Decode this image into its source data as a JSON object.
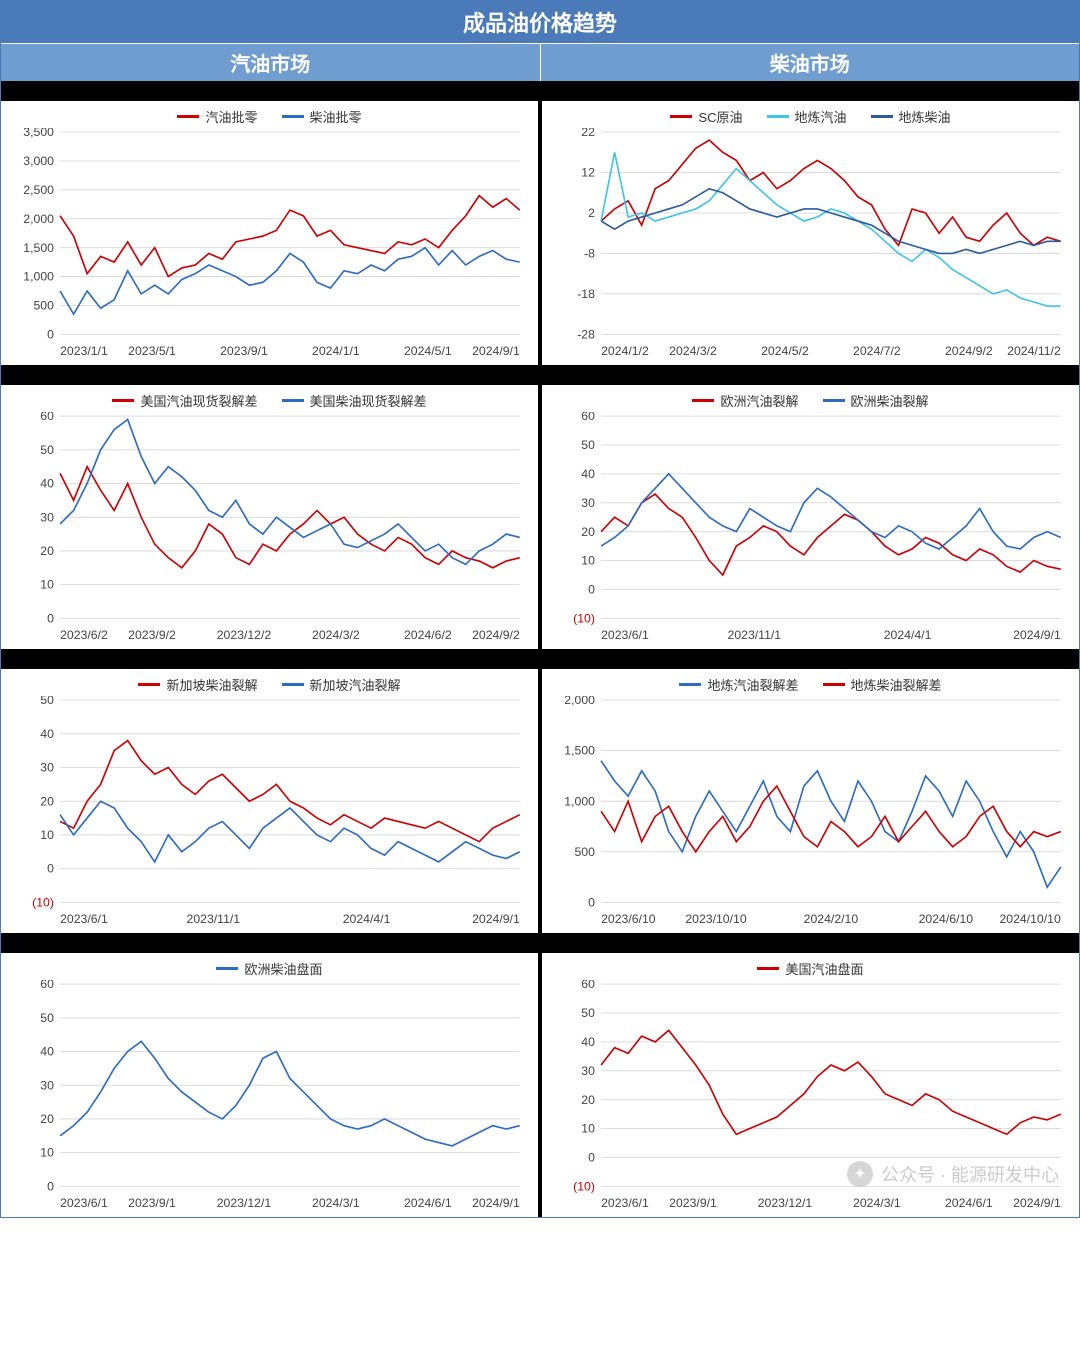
{
  "colors": {
    "header_bg": "#4a7ab8",
    "subheader_bg": "#6f9dd0",
    "grid": "#dcdcdc",
    "red": "#cc0000",
    "blue": "#2a6cc4",
    "cyan": "#3ec5e8",
    "darkblue": "#2a5aa0",
    "text": "#444444",
    "bg": "#ffffff"
  },
  "typography": {
    "title_fontsize": 22,
    "subtitle_fontsize": 20,
    "legend_fontsize": 13,
    "axis_fontsize": 12
  },
  "main_title": "成品油价格趋势",
  "subtitles": {
    "left": "汽油市场",
    "right": "柴油市场"
  },
  "watermark": "公众号 · 能源研发中心",
  "charts": [
    {
      "id": "c1",
      "type": "line",
      "y": {
        "min": 0,
        "max": 3500,
        "step": 500
      },
      "x_labels": [
        "2023/1/1",
        "2023/5/1",
        "2023/9/1",
        "2024/1/1",
        "2024/5/1",
        "2024/9/1"
      ],
      "series": [
        {
          "name": "汽油批零",
          "color": "red",
          "data": [
            2050,
            1700,
            1050,
            1350,
            1250,
            1600,
            1200,
            1500,
            1000,
            1150,
            1200,
            1400,
            1300,
            1600,
            1650,
            1700,
            1800,
            2150,
            2050,
            1700,
            1800,
            1550,
            1500,
            1450,
            1400,
            1600,
            1550,
            1650,
            1500,
            1800,
            2050,
            2400,
            2200,
            2350,
            2150
          ]
        },
        {
          "name": "柴油批零",
          "color": "blue",
          "data": [
            750,
            350,
            750,
            450,
            600,
            1100,
            700,
            850,
            700,
            950,
            1050,
            1200,
            1100,
            1000,
            850,
            900,
            1100,
            1400,
            1250,
            900,
            800,
            1100,
            1050,
            1200,
            1100,
            1300,
            1350,
            1500,
            1200,
            1450,
            1200,
            1350,
            1450,
            1300,
            1250
          ]
        }
      ]
    },
    {
      "id": "c2",
      "type": "line",
      "y": {
        "min": -28,
        "max": 22,
        "step": 10
      },
      "x_labels": [
        "2024/1/2",
        "2024/3/2",
        "2024/5/2",
        "2024/7/2",
        "2024/9/2",
        "2024/11/2"
      ],
      "series": [
        {
          "name": "SC原油",
          "color": "red",
          "data": [
            0,
            3,
            5,
            -1,
            8,
            10,
            14,
            18,
            20,
            17,
            15,
            10,
            12,
            8,
            10,
            13,
            15,
            13,
            10,
            6,
            4,
            -2,
            -6,
            3,
            2,
            -3,
            1,
            -4,
            -5,
            -1,
            2,
            -3,
            -6,
            -4,
            -5
          ]
        },
        {
          "name": "地炼汽油",
          "color": "cyan",
          "data": [
            0,
            17,
            1,
            2,
            0,
            1,
            2,
            3,
            5,
            9,
            13,
            10,
            7,
            4,
            2,
            0,
            1,
            3,
            2,
            0,
            -2,
            -5,
            -8,
            -10,
            -7,
            -9,
            -12,
            -14,
            -16,
            -18,
            -17,
            -19,
            -20,
            -21,
            -21
          ]
        },
        {
          "name": "地炼柴油",
          "color": "darkblue",
          "data": [
            0,
            -2,
            0,
            1,
            2,
            3,
            4,
            6,
            8,
            7,
            5,
            3,
            2,
            1,
            2,
            3,
            3,
            2,
            1,
            0,
            -1,
            -3,
            -5,
            -6,
            -7,
            -8,
            -8,
            -7,
            -8,
            -7,
            -6,
            -5,
            -6,
            -5,
            -5
          ]
        }
      ]
    },
    {
      "id": "c3",
      "type": "line",
      "y": {
        "min": 0,
        "max": 60,
        "step": 10
      },
      "x_labels": [
        "2023/6/2",
        "2023/9/2",
        "2023/12/2",
        "2024/3/2",
        "2024/6/2",
        "2024/9/2"
      ],
      "series": [
        {
          "name": "美国汽油现货裂解差",
          "color": "red",
          "data": [
            43,
            35,
            45,
            38,
            32,
            40,
            30,
            22,
            18,
            15,
            20,
            28,
            25,
            18,
            16,
            22,
            20,
            25,
            28,
            32,
            28,
            30,
            25,
            22,
            20,
            24,
            22,
            18,
            16,
            20,
            18,
            17,
            15,
            17,
            18
          ]
        },
        {
          "name": "美国柴油现货裂解差",
          "color": "blue",
          "data": [
            28,
            32,
            40,
            50,
            56,
            59,
            48,
            40,
            45,
            42,
            38,
            32,
            30,
            35,
            28,
            25,
            30,
            27,
            24,
            26,
            28,
            22,
            21,
            23,
            25,
            28,
            24,
            20,
            22,
            18,
            16,
            20,
            22,
            25,
            24
          ]
        }
      ]
    },
    {
      "id": "c4",
      "type": "line",
      "y": {
        "min": -10,
        "max": 60,
        "step": 10
      },
      "x_labels": [
        "2023/6/1",
        "2023/11/1",
        "2024/4/1",
        "2024/9/1"
      ],
      "neg_labels": [
        -10
      ],
      "series": [
        {
          "name": "欧洲汽油裂解",
          "color": "red",
          "data": [
            20,
            25,
            22,
            30,
            33,
            28,
            25,
            18,
            10,
            5,
            15,
            18,
            22,
            20,
            15,
            12,
            18,
            22,
            26,
            24,
            20,
            15,
            12,
            14,
            18,
            16,
            12,
            10,
            14,
            12,
            8,
            6,
            10,
            8,
            7
          ]
        },
        {
          "name": "欧洲柴油裂解",
          "color": "blue",
          "data": [
            15,
            18,
            22,
            30,
            35,
            40,
            35,
            30,
            25,
            22,
            20,
            28,
            25,
            22,
            20,
            30,
            35,
            32,
            28,
            24,
            20,
            18,
            22,
            20,
            16,
            14,
            18,
            22,
            28,
            20,
            15,
            14,
            18,
            20,
            18
          ]
        }
      ]
    },
    {
      "id": "c5",
      "type": "line",
      "y": {
        "min": -10,
        "max": 50,
        "step": 10
      },
      "x_labels": [
        "2023/6/1",
        "2023/11/1",
        "2024/4/1",
        "2024/9/1"
      ],
      "neg_labels": [
        -10
      ],
      "series": [
        {
          "name": "新加坡柴油裂解",
          "color": "red",
          "data": [
            14,
            12,
            20,
            25,
            35,
            38,
            32,
            28,
            30,
            25,
            22,
            26,
            28,
            24,
            20,
            22,
            25,
            20,
            18,
            15,
            13,
            16,
            14,
            12,
            15,
            14,
            13,
            12,
            14,
            12,
            10,
            8,
            12,
            14,
            16
          ]
        },
        {
          "name": "新加坡汽油裂解",
          "color": "blue",
          "data": [
            16,
            10,
            15,
            20,
            18,
            12,
            8,
            2,
            10,
            5,
            8,
            12,
            14,
            10,
            6,
            12,
            15,
            18,
            14,
            10,
            8,
            12,
            10,
            6,
            4,
            8,
            6,
            4,
            2,
            5,
            8,
            6,
            4,
            3,
            5
          ]
        }
      ]
    },
    {
      "id": "c6",
      "type": "line",
      "y": {
        "min": 0,
        "max": 2000,
        "step": 500
      },
      "x_labels": [
        "2023/6/10",
        "2023/10/10",
        "2024/2/10",
        "2024/6/10",
        "2024/10/10"
      ],
      "series": [
        {
          "name": "地炼汽油裂解差",
          "color": "blue",
          "data": [
            1400,
            1200,
            1050,
            1300,
            1100,
            700,
            500,
            850,
            1100,
            900,
            700,
            950,
            1200,
            850,
            700,
            1150,
            1300,
            1000,
            800,
            1200,
            1000,
            700,
            600,
            900,
            1250,
            1100,
            850,
            1200,
            1000,
            700,
            450,
            700,
            500,
            150,
            350
          ]
        },
        {
          "name": "地炼柴油裂解差",
          "color": "red",
          "data": [
            900,
            700,
            1000,
            600,
            850,
            950,
            700,
            500,
            700,
            850,
            600,
            750,
            1000,
            1150,
            900,
            650,
            550,
            800,
            700,
            550,
            650,
            850,
            600,
            750,
            900,
            700,
            550,
            650,
            850,
            950,
            700,
            550,
            700,
            650,
            700
          ]
        }
      ]
    },
    {
      "id": "c7",
      "type": "line",
      "y": {
        "min": 0,
        "max": 60,
        "step": 10
      },
      "x_labels": [
        "2023/6/1",
        "2023/9/1",
        "2023/12/1",
        "2024/3/1",
        "2024/6/1",
        "2024/9/1"
      ],
      "series": [
        {
          "name": "欧洲柴油盘面",
          "color": "blue",
          "data": [
            15,
            18,
            22,
            28,
            35,
            40,
            43,
            38,
            32,
            28,
            25,
            22,
            20,
            24,
            30,
            38,
            40,
            32,
            28,
            24,
            20,
            18,
            17,
            18,
            20,
            18,
            16,
            14,
            13,
            12,
            14,
            16,
            18,
            17,
            18
          ]
        }
      ]
    },
    {
      "id": "c8",
      "type": "line",
      "y": {
        "min": -10,
        "max": 60,
        "step": 10
      },
      "x_labels": [
        "2023/6/1",
        "2023/9/1",
        "2023/12/1",
        "2024/3/1",
        "2024/6/1",
        "2024/9/1"
      ],
      "neg_labels": [
        -10
      ],
      "series": [
        {
          "name": "美国汽油盘面",
          "color": "red",
          "data": [
            32,
            38,
            36,
            42,
            40,
            44,
            38,
            32,
            25,
            15,
            8,
            10,
            12,
            14,
            18,
            22,
            28,
            32,
            30,
            33,
            28,
            22,
            20,
            18,
            22,
            20,
            16,
            14,
            12,
            10,
            8,
            12,
            14,
            13,
            15
          ]
        }
      ]
    }
  ]
}
